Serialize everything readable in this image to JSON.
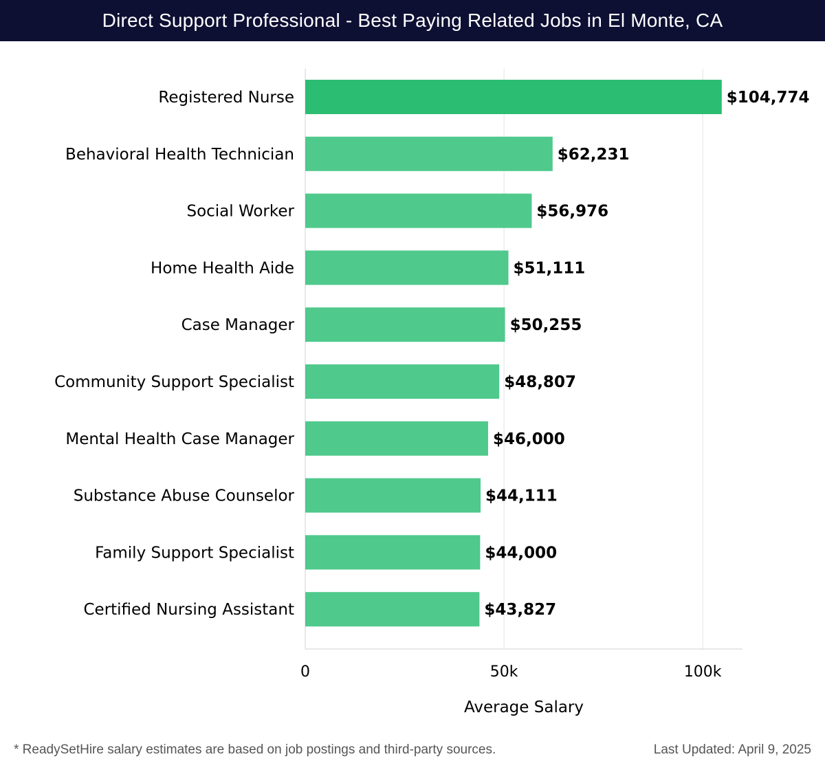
{
  "header": {
    "title": "Direct Support Professional - Best Paying Related Jobs in El Monte, CA"
  },
  "colors": {
    "header_bg": "#0d0f33",
    "top_bar": "#2bbd72",
    "bar": "#4fc98c",
    "grid": "#e3e3e3",
    "text": "#000000"
  },
  "chart_data": {
    "type": "bar",
    "orientation": "horizontal",
    "title": "Direct Support Professional - Best Paying Related Jobs in El Monte, CA",
    "xlabel": "Average Salary",
    "ylabel": "",
    "xlim": [
      0,
      110000
    ],
    "grid": true,
    "x_ticks": [
      0,
      50000,
      100000
    ],
    "x_tick_labels": [
      "0",
      "50k",
      "100k"
    ],
    "categories": [
      "Registered Nurse",
      "Behavioral Health Technician",
      "Social Worker",
      "Home Health Aide",
      "Case Manager",
      "Community Support Specialist",
      "Mental Health Case Manager",
      "Substance Abuse Counselor",
      "Family Support Specialist",
      "Certified Nursing Assistant"
    ],
    "values": [
      104774,
      62231,
      56976,
      51111,
      50255,
      48807,
      46000,
      44111,
      44000,
      43827
    ],
    "value_labels": [
      "$104,774",
      "$62,231",
      "$56,976",
      "$51,111",
      "$50,255",
      "$48,807",
      "$46,000",
      "$44,111",
      "$44,000",
      "$43,827"
    ]
  },
  "footer": {
    "note": "* ReadySetHire salary estimates are based on job postings and third-party sources.",
    "updated": "Last Updated: April 9, 2025"
  }
}
